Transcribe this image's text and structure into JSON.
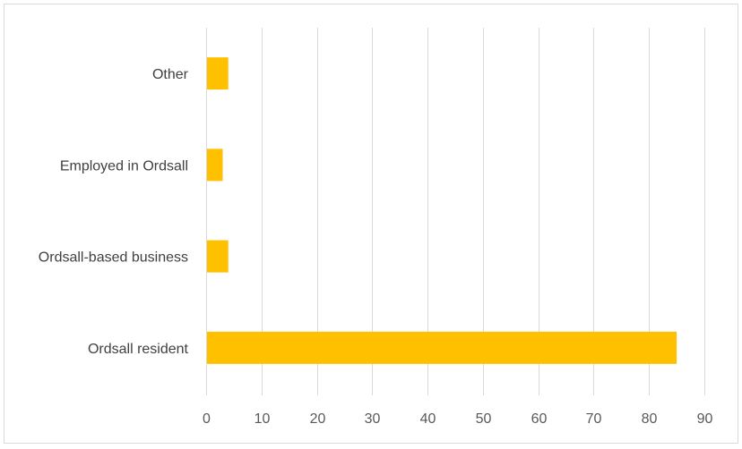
{
  "chart_data": {
    "type": "bar",
    "orientation": "horizontal",
    "categories": [
      "Ordsall resident",
      "Ordsall-based business",
      "Employed in Ordsall",
      "Other"
    ],
    "values": [
      85,
      4,
      3,
      4
    ],
    "xlim": [
      0,
      90
    ],
    "xticks": [
      "0",
      "10",
      "20",
      "30",
      "40",
      "50",
      "60",
      "70",
      "80",
      "90"
    ],
    "grid": "vertical",
    "bar_color": "#FFC000",
    "grid_color": "#D9D9D9",
    "frame_color": "#D9D9D9"
  }
}
